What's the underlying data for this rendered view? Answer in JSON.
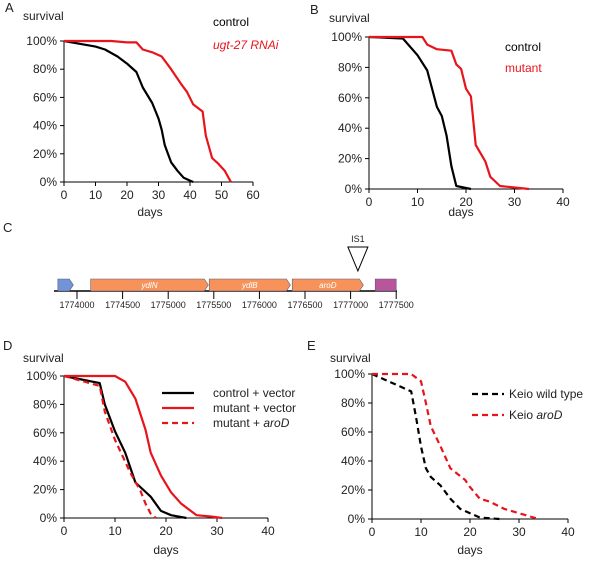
{
  "chart_data": [
    {
      "panel": "A",
      "type": "line",
      "ylabel": "survival",
      "xlabel": "days",
      "xlim": [
        0,
        60
      ],
      "xticks": [
        0,
        10,
        20,
        30,
        40,
        50,
        60
      ],
      "ylim": [
        0,
        100
      ],
      "yticks": [
        "0%",
        "20%",
        "40%",
        "60%",
        "80%",
        "100%"
      ],
      "legend": "top-right",
      "legend_style": "text",
      "series": [
        {
          "name": "control",
          "color": "#000000",
          "dash": false,
          "x": [
            0,
            5,
            10,
            13,
            17,
            20,
            23,
            25,
            28,
            30,
            31,
            32,
            34,
            36,
            38,
            40,
            41
          ],
          "y": [
            100,
            98,
            96,
            94,
            89,
            84,
            78,
            67,
            56,
            45,
            37,
            26,
            14,
            8,
            3,
            1,
            0
          ]
        },
        {
          "name": "ugt-27 RNAi",
          "italic": true,
          "color": "#e8141b",
          "dash": false,
          "x": [
            0,
            15,
            20,
            23,
            25,
            28,
            31,
            34,
            37,
            39,
            41,
            44,
            45,
            47,
            49,
            51,
            53
          ],
          "y": [
            100,
            100,
            99,
            99,
            94,
            92,
            89,
            80,
            70,
            64,
            55,
            50,
            33,
            17,
            13,
            8,
            0
          ]
        }
      ]
    },
    {
      "panel": "B",
      "type": "line",
      "ylabel": "survival",
      "xlabel": "days",
      "xlim": [
        0,
        40
      ],
      "xticks": [
        0,
        10,
        20,
        30,
        40
      ],
      "ylim": [
        0,
        100
      ],
      "yticks": [
        "0%",
        "20%",
        "40%",
        "60%",
        "80%",
        "100%"
      ],
      "legend": "top-right",
      "legend_style": "text",
      "series": [
        {
          "name": "control",
          "color": "#000000",
          "dash": false,
          "x": [
            0,
            7,
            10,
            12,
            14,
            15,
            16,
            17,
            18,
            21
          ],
          "y": [
            100,
            99,
            88,
            78,
            54,
            48,
            35,
            15,
            2,
            0
          ]
        },
        {
          "name": "mutant",
          "color": "#e8141b",
          "dash": false,
          "x": [
            0,
            11,
            12,
            14,
            17,
            18,
            19,
            20,
            21,
            22,
            24,
            25,
            27,
            30,
            33
          ],
          "y": [
            100,
            100,
            95,
            92,
            91,
            82,
            79,
            66,
            61,
            29,
            18,
            8,
            2,
            1,
            0
          ]
        }
      ]
    },
    {
      "panel": "D",
      "type": "line",
      "ylabel": "survival",
      "xlabel": "days",
      "xlim": [
        0,
        40
      ],
      "xticks": [
        0,
        10,
        20,
        30,
        40
      ],
      "ylim": [
        0,
        100
      ],
      "yticks": [
        "0%",
        "20%",
        "40%",
        "60%",
        "80%",
        "100%"
      ],
      "legend": "top-right",
      "legend_style": "lines",
      "series": [
        {
          "name": "control + vector",
          "color": "#000000",
          "dash": false,
          "x": [
            0,
            7,
            8,
            10,
            12,
            14,
            17,
            19,
            21,
            24
          ],
          "y": [
            100,
            95,
            80,
            61,
            46,
            25,
            15,
            5,
            2,
            0
          ]
        },
        {
          "name": "mutant + vector",
          "color": "#e8141b",
          "dash": false,
          "x": [
            0,
            10,
            12,
            14,
            16,
            17,
            19,
            21,
            23,
            26,
            29,
            31
          ],
          "y": [
            100,
            100,
            96,
            84,
            62,
            46,
            30,
            18,
            10,
            2,
            1,
            0
          ]
        },
        {
          "name": "mutant + ",
          "name_italic": "aroD",
          "color": "#e8141b",
          "dash": true,
          "x": [
            0,
            7,
            8,
            10,
            13,
            15,
            16,
            17,
            18
          ],
          "y": [
            100,
            93,
            75,
            55,
            32,
            19,
            10,
            3,
            0
          ]
        }
      ]
    },
    {
      "panel": "E",
      "type": "line",
      "ylabel": "survival",
      "xlabel": "days",
      "xlim": [
        0,
        40
      ],
      "xticks": [
        0,
        10,
        20,
        30,
        40
      ],
      "ylim": [
        0,
        100
      ],
      "yticks": [
        "0%",
        "20%",
        "40%",
        "60%",
        "80%",
        "100%"
      ],
      "legend": "top-right",
      "legend_style": "lines",
      "series": [
        {
          "name": "Keio wild type",
          "color": "#000000",
          "dash": true,
          "x": [
            0,
            8,
            9,
            10,
            11,
            12,
            14,
            16,
            18,
            20,
            22,
            26
          ],
          "y": [
            100,
            88,
            70,
            50,
            35,
            29,
            23,
            14,
            7,
            4,
            1,
            0
          ]
        },
        {
          "name": "Keio ",
          "name_italic": "aroD",
          "color": "#e8141b",
          "dash": true,
          "x": [
            0,
            8,
            10,
            11,
            12,
            14,
            16,
            19,
            20,
            22,
            24,
            27,
            30,
            34
          ],
          "y": [
            100,
            100,
            95,
            80,
            64,
            50,
            35,
            27,
            22,
            14,
            12,
            7,
            4,
            0
          ]
        }
      ]
    }
  ],
  "gene_map": {
    "panel": "C",
    "axis_ticks": [
      "1774000",
      "1774500",
      "1775000",
      "1775500",
      "1776000",
      "1776500",
      "1777000",
      "1777500"
    ],
    "genes": [
      {
        "label": "",
        "color": "#7094d6",
        "start": 1773790,
        "end": 1773960
      },
      {
        "label": "ydlN",
        "color": "#f7935a",
        "start": 1774150,
        "end": 1775440
      },
      {
        "label": "ydlB",
        "color": "#f7935a",
        "start": 1775450,
        "end": 1776340
      },
      {
        "label": "aroD",
        "color": "#f7935a",
        "start": 1776360,
        "end": 1777140
      },
      {
        "label": "",
        "color": "#b9559a",
        "start": 1777270,
        "end": 1777500
      }
    ],
    "insertion": {
      "label": "IS1",
      "position": 1777080
    }
  }
}
